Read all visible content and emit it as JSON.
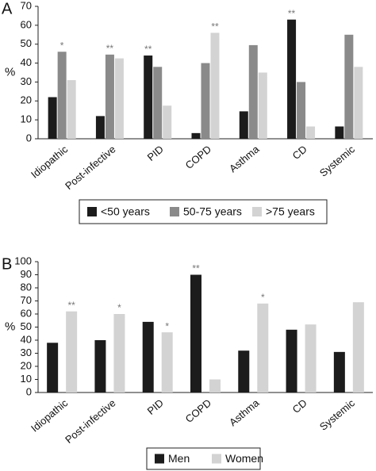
{
  "chart_data": [
    {
      "type": "bar",
      "panel": "A",
      "ylabel": "%",
      "categories": [
        "Idiopathic",
        "Post-infective",
        "PID",
        "COPD",
        "Asthma",
        "CD",
        "Systemic"
      ],
      "series": [
        {
          "name": "<50 years",
          "color": "#1c1c1c",
          "values": [
            22,
            12,
            44,
            3,
            14.5,
            63,
            6.5
          ],
          "annotations": [
            null,
            null,
            "**",
            null,
            null,
            "**",
            null
          ]
        },
        {
          "name": "50-75 years",
          "color": "#8a8a8a",
          "values": [
            46,
            44.5,
            38,
            40,
            49.5,
            30,
            55
          ],
          "annotations": [
            "*",
            "**",
            null,
            null,
            null,
            null,
            null
          ]
        },
        {
          "name": ">75 years",
          "color": "#d3d3d3",
          "values": [
            31,
            42.5,
            17.5,
            56,
            35,
            6.5,
            38
          ],
          "annotations": [
            null,
            null,
            null,
            "**",
            null,
            null,
            null
          ]
        }
      ],
      "ylim": [
        0,
        70
      ],
      "yticks": [
        0,
        10,
        20,
        30,
        40,
        50,
        60,
        70
      ]
    },
    {
      "type": "bar",
      "panel": "B",
      "ylabel": "%",
      "categories": [
        "Idiopathic",
        "Post-infective",
        "PID",
        "COPD",
        "Asthma",
        "CD",
        "Systemic"
      ],
      "series": [
        {
          "name": "Men",
          "color": "#1c1c1c",
          "values": [
            38,
            40,
            54,
            90,
            32,
            48,
            31
          ],
          "annotations": [
            null,
            null,
            null,
            "**",
            null,
            null,
            null
          ]
        },
        {
          "name": "Women",
          "color": "#d3d3d3",
          "values": [
            62,
            60,
            46,
            10,
            68,
            52,
            69
          ],
          "annotations": [
            "**",
            "*",
            "*",
            null,
            "*",
            null,
            null
          ]
        }
      ],
      "ylim": [
        0,
        100
      ],
      "yticks": [
        0,
        10,
        20,
        30,
        40,
        50,
        60,
        70,
        80,
        90,
        100
      ]
    }
  ]
}
